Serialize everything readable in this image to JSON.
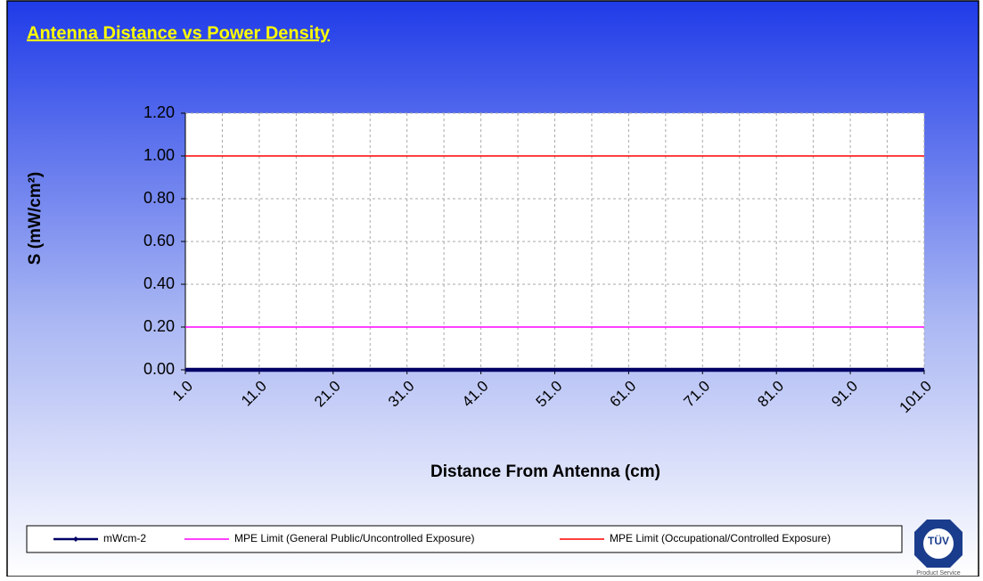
{
  "chart_data": {
    "type": "line",
    "title": "Antenna Distance vs Power Density",
    "ylabel": "S (mW/cm²)",
    "xlabel": "Distance From Antenna (cm)",
    "xlim": [
      1,
      101
    ],
    "xticks": [
      {
        "value": 1,
        "label": "1.0"
      },
      {
        "value": 11,
        "label": "11.0"
      },
      {
        "value": 21,
        "label": "21.0"
      },
      {
        "value": 31,
        "label": "31.0"
      },
      {
        "value": 41,
        "label": "41.0"
      },
      {
        "value": 51,
        "label": "51.0"
      },
      {
        "value": 61,
        "label": "61.0"
      },
      {
        "value": 71,
        "label": "71.0"
      },
      {
        "value": 81,
        "label": "81.0"
      },
      {
        "value": 91,
        "label": "91.0"
      },
      {
        "value": 101,
        "label": "101.0"
      }
    ],
    "xgrid": [
      1,
      6,
      11,
      16,
      21,
      26,
      31,
      36,
      41,
      46,
      51,
      56,
      61,
      66,
      71,
      76,
      81,
      86,
      91,
      96,
      101
    ],
    "ylim": [
      0,
      1.2
    ],
    "yticks": [
      {
        "value": 0,
        "label": "0.00"
      },
      {
        "value": 0.2,
        "label": "0.20"
      },
      {
        "value": 0.4,
        "label": "0.40"
      },
      {
        "value": 0.6,
        "label": "0.60"
      },
      {
        "value": 0.8,
        "label": "0.80"
      },
      {
        "value": 1,
        "label": "1.00"
      },
      {
        "value": 1.2,
        "label": "1.20"
      }
    ],
    "grid": true,
    "series": [
      {
        "name": "mWcm-2",
        "color": "#000066",
        "x": [
          1,
          2,
          3,
          4,
          5,
          6,
          7,
          8,
          9,
          10,
          11,
          12,
          13,
          14,
          15,
          16,
          17,
          18,
          19,
          20,
          21,
          22,
          23,
          24,
          25,
          26,
          27,
          28,
          29,
          30,
          31,
          32,
          33,
          34,
          35,
          36,
          37,
          38,
          39,
          40,
          41,
          42,
          43,
          44,
          45,
          46,
          47,
          48,
          49,
          50,
          51,
          52,
          53,
          54,
          55,
          56,
          57,
          58,
          59,
          60,
          61,
          62,
          63,
          64,
          65,
          66,
          67,
          68,
          69,
          70,
          71,
          72,
          73,
          74,
          75,
          76,
          77,
          78,
          79,
          80,
          81,
          82,
          83,
          84,
          85,
          86,
          87,
          88,
          89,
          90,
          91,
          92,
          93,
          94,
          95,
          96,
          97,
          98,
          99,
          100,
          101
        ],
        "values": [
          0,
          0,
          0,
          0,
          0,
          0,
          0,
          0,
          0,
          0,
          0,
          0,
          0,
          0,
          0,
          0,
          0,
          0,
          0,
          0,
          0,
          0,
          0,
          0,
          0,
          0,
          0,
          0,
          0,
          0,
          0,
          0,
          0,
          0,
          0,
          0,
          0,
          0,
          0,
          0,
          0,
          0,
          0,
          0,
          0,
          0,
          0,
          0,
          0,
          0,
          0,
          0,
          0,
          0,
          0,
          0,
          0,
          0,
          0,
          0,
          0,
          0,
          0,
          0,
          0,
          0,
          0,
          0,
          0,
          0,
          0,
          0,
          0,
          0,
          0,
          0,
          0,
          0,
          0,
          0,
          0,
          0,
          0,
          0,
          0,
          0,
          0,
          0,
          0,
          0,
          0,
          0,
          0,
          0,
          0,
          0,
          0,
          0,
          0,
          0,
          0
        ]
      },
      {
        "name": "MPE Limit (General Public/Uncontrolled Exposure)",
        "color": "#ff00ff",
        "x": [
          1,
          101
        ],
        "values": [
          0.2,
          0.2
        ]
      },
      {
        "name": "MPE Limit (Occupational/Controlled Exposure)",
        "color": "#ff0000",
        "x": [
          1,
          101
        ],
        "values": [
          1,
          1
        ]
      }
    ],
    "logo": {
      "label": "TÜV",
      "caption": "Product Service"
    }
  }
}
